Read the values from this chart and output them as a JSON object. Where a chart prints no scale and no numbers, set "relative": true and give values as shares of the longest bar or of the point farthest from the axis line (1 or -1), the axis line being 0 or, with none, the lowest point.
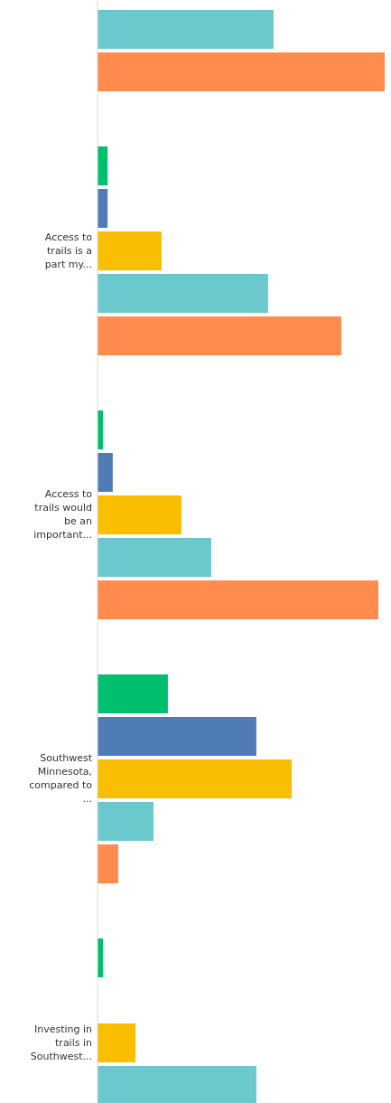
{
  "chart_data": {
    "type": "bar",
    "orientation": "horizontal",
    "relative": true,
    "categories": [
      null,
      "Access to trails is a part my...",
      "Access to trails would be an important...",
      "Southwest Minnesota, compared to ...",
      "Investing in trails in Southwest..."
    ],
    "series": [
      {
        "color": "#00bf6f",
        "values": [
          null,
          0.035,
          0.019,
          0.245,
          0.019
        ]
      },
      {
        "color": "#507cb6",
        "values": [
          null,
          0.035,
          0.053,
          0.553,
          null
        ]
      },
      {
        "color": "#f9be00",
        "values": [
          null,
          0.223,
          0.292,
          0.676,
          0.132
        ]
      },
      {
        "color": "#6bc8cd",
        "values": [
          0.613,
          0.594,
          0.396,
          0.195,
          0.553
        ]
      },
      {
        "color": "#ff8b4f",
        "values": [
          1,
          0.849,
          0.978,
          0.072,
          null
        ]
      }
    ]
  }
}
